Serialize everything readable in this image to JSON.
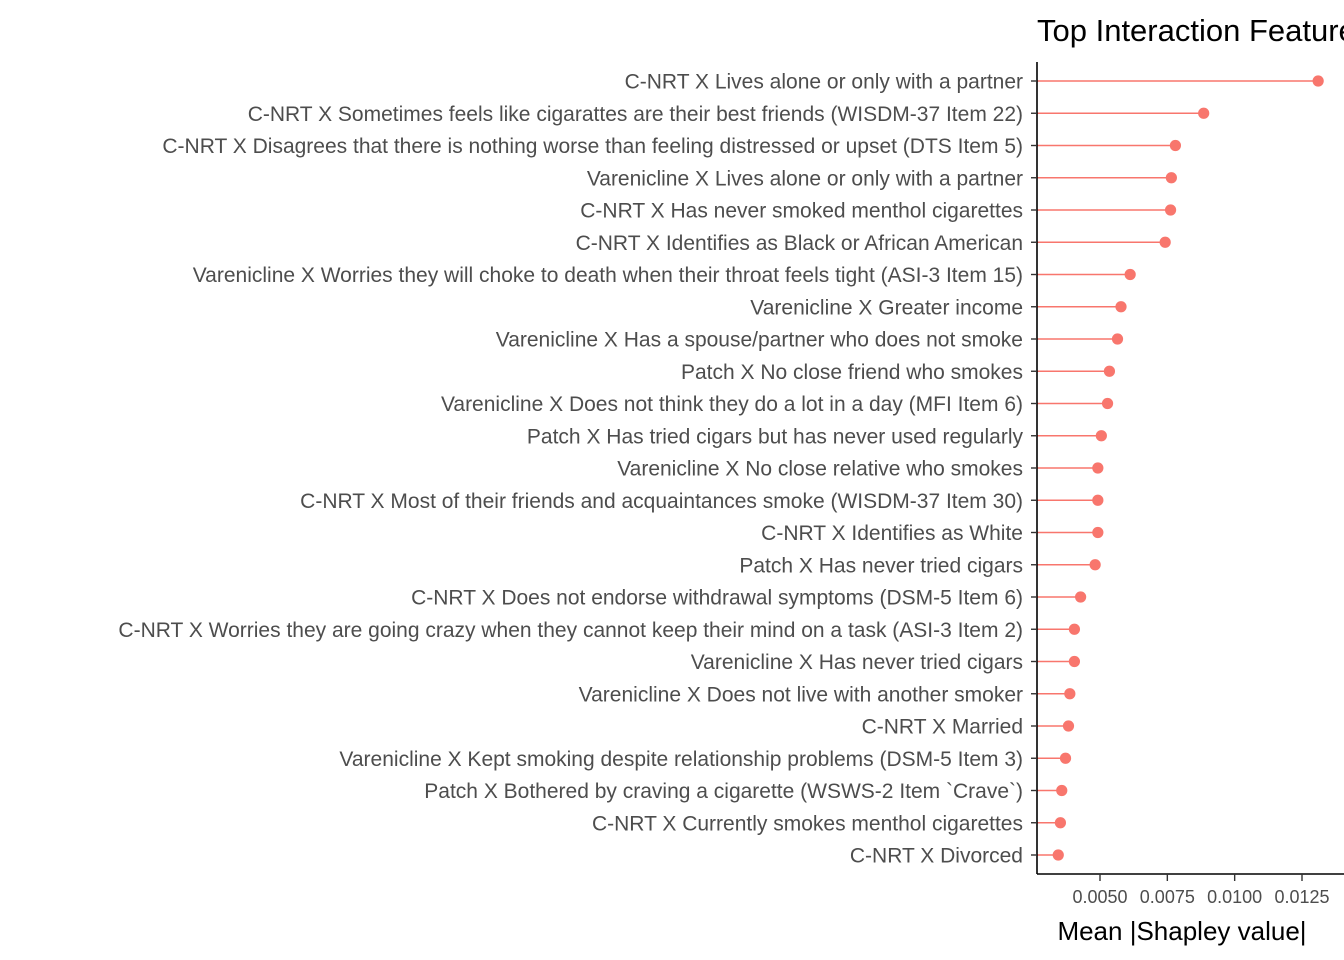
{
  "chart_data": {
    "type": "lollipop",
    "title": "Top Interaction Features",
    "xlabel": "Mean |Shapley value|",
    "ylabel": "",
    "xlim": [
      0.0032,
      0.0133
    ],
    "xticks": [
      0.005,
      0.0075,
      0.01,
      0.0125
    ],
    "xtick_labels": [
      "0.0050",
      "0.0075",
      "0.0100",
      "0.0125"
    ],
    "grid": false,
    "legend": "none",
    "color": "#F8766D",
    "categories": [
      "C-NRT X Lives alone or only with a partner",
      "C-NRT X Sometimes feels like cigarattes are their best friends (WISDM-37 Item 22)",
      "C-NRT X Disagrees that there is nothing worse than feeling distressed or upset (DTS Item 5)",
      "Varenicline X Lives alone or only with a partner",
      "C-NRT X Has never smoked menthol cigarettes",
      "C-NRT X Identifies as Black or African American",
      "Varenicline X Worries they will choke to death when their throat feels tight (ASI-3 Item 15)",
      "Varenicline X Greater income",
      "Varenicline X Has a spouse/partner who does not smoke",
      "Patch X No close friend who smokes",
      "Varenicline X Does not think they do a lot in a day (MFI Item 6)",
      "Patch X Has tried cigars but has never used regularly",
      "Varenicline X No close relative who smokes",
      "C-NRT X Most of their friends and acquaintances smoke (WISDM-37 Item 30)",
      "C-NRT X Identifies as White",
      "Patch X Has never tried cigars",
      "C-NRT X Does not endorse withdrawal symptoms (DSM-5 Item 6)",
      "C-NRT X Worries they are going crazy when they cannot keep their mind on a task (ASI-3 Item 2)",
      "Varenicline X Has never tried cigars",
      "Varenicline X Does not live with another smoker",
      "C-NRT X Married",
      "Varenicline X Kept smoking despite relationship problems (DSM-5 Item 3)",
      "Patch X Bothered by craving a cigarette (WSWS-2 Item `Crave`)",
      "C-NRT X Currently smokes menthol cigarettes",
      "C-NRT X Divorced"
    ],
    "values": [
      0.0131,
      0.00885,
      0.0078,
      0.00765,
      0.00762,
      0.00742,
      0.00612,
      0.00578,
      0.00565,
      0.00535,
      0.00528,
      0.00505,
      0.00492,
      0.00492,
      0.00492,
      0.00482,
      0.00428,
      0.00405,
      0.00405,
      0.00388,
      0.00383,
      0.00372,
      0.00358,
      0.00353,
      0.00345
    ]
  }
}
